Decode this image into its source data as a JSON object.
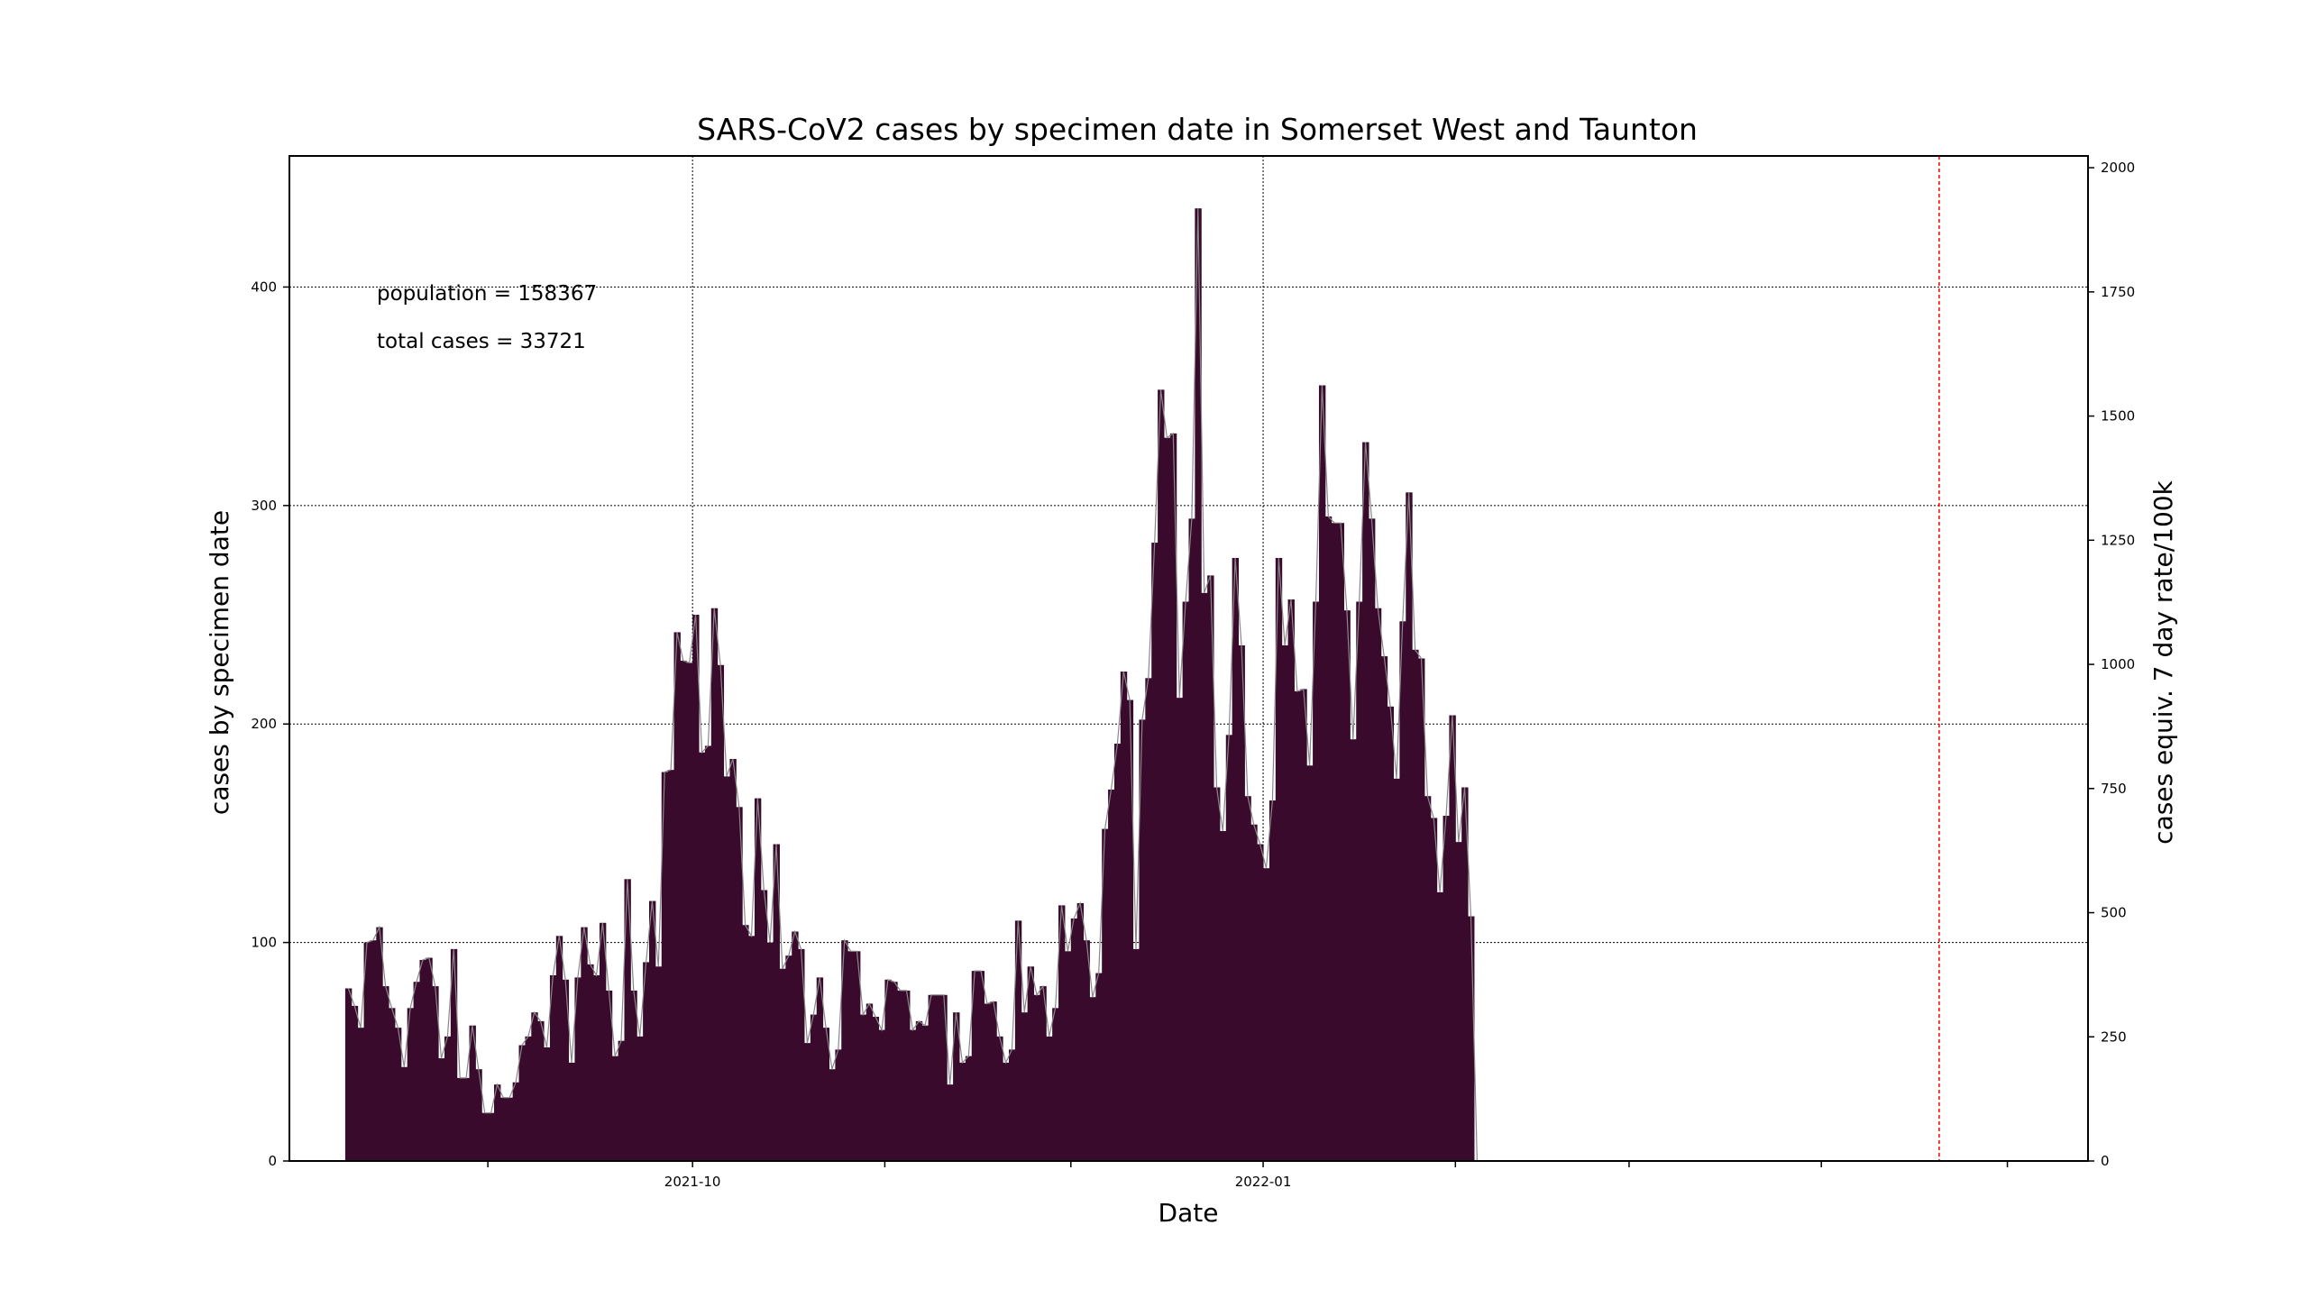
{
  "chart_data": {
    "type": "bar",
    "title": "SARS-CoV2 cases by specimen date in Somerset West and Taunton",
    "xlabel": "Date",
    "ylabel": "cases by specimen date",
    "ylabel_right": "cases equiv. 7 day rate/100k",
    "annotations": [
      "population = 158367",
      "total cases = 33721"
    ],
    "x_start": "2021-08-06",
    "x_range": [
      "2021-07-28",
      "2022-05-14"
    ],
    "x_ticks": [
      {
        "date": "2021-08-29",
        "label": ""
      },
      {
        "date": "2021-10-01",
        "label": "2021-10"
      },
      {
        "date": "2021-11-01",
        "label": ""
      },
      {
        "date": "2021-12-01",
        "label": ""
      },
      {
        "date": "2022-01-01",
        "label": "2022-01"
      },
      {
        "date": "2022-02-01",
        "label": ""
      },
      {
        "date": "2022-03-01",
        "label": ""
      },
      {
        "date": "2022-04-01",
        "label": ""
      },
      {
        "date": "2022-05-01",
        "label": ""
      }
    ],
    "ylim": [
      0,
      460
    ],
    "y_ticks": [
      0,
      100,
      200,
      300,
      400
    ],
    "y_right_ticks": [
      0,
      250,
      500,
      750,
      1000,
      1250,
      1500,
      1750,
      2000
    ],
    "y_right_max": 2000,
    "y_right_scale": 0.2273,
    "grid": true,
    "latest_complete_date": "2022-04-19",
    "values": [
      79,
      71,
      61,
      100,
      101,
      107,
      80,
      70,
      61,
      43,
      70,
      82,
      92,
      93,
      80,
      47,
      57,
      97,
      38,
      38,
      62,
      42,
      22,
      22,
      35,
      29,
      29,
      36,
      53,
      57,
      68,
      64,
      52,
      85,
      103,
      83,
      45,
      84,
      107,
      90,
      85,
      109,
      78,
      48,
      55,
      129,
      78,
      57,
      91,
      119,
      89,
      178,
      179,
      242,
      229,
      228,
      250,
      187,
      190,
      253,
      227,
      176,
      184,
      162,
      108,
      103,
      166,
      124,
      100,
      145,
      88,
      94,
      105,
      97,
      54,
      67,
      84,
      61,
      42,
      51,
      101,
      96,
      96,
      67,
      72,
      66,
      60,
      83,
      82,
      78,
      78,
      60,
      64,
      62,
      76,
      76,
      76,
      35,
      68,
      45,
      48,
      87,
      87,
      72,
      73,
      57,
      45,
      51,
      110,
      68,
      89,
      76,
      80,
      57,
      70,
      117,
      96,
      111,
      118,
      101,
      75,
      86,
      152,
      170,
      191,
      224,
      211,
      97,
      202,
      221,
      283,
      353,
      331,
      333,
      212,
      256,
      294,
      436,
      260,
      268,
      171,
      151,
      195,
      276,
      236,
      167,
      154,
      145,
      134,
      165,
      276,
      236,
      257,
      215,
      216,
      181,
      256,
      355,
      295,
      292,
      292,
      252,
      193,
      256,
      329,
      294,
      253,
      231,
      208,
      175,
      247,
      306,
      234,
      230,
      167,
      157,
      123,
      158,
      204,
      146,
      171,
      112,
      0
    ],
    "color_scale": [
      {
        "min": 0,
        "max": 7,
        "color": "#21629e"
      },
      {
        "min": 7,
        "max": 10,
        "color": "#143f7a"
      },
      {
        "min": 10,
        "max": 15,
        "color": "#5d0050"
      },
      {
        "min": 15,
        "max": 9999,
        "color": "#3a0a2d"
      }
    ],
    "incomplete_color": "#b37fad",
    "trace_line_color": "#888888",
    "marker_line_color": "#ff0000"
  }
}
